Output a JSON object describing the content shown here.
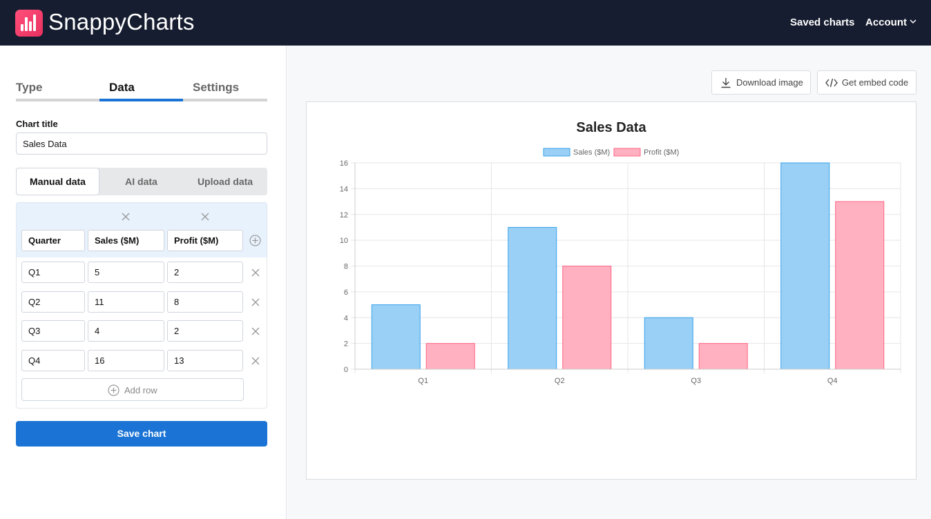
{
  "app": {
    "name": "SnappyCharts",
    "brand_color": "#ff4f7b",
    "header_bg": "#161d30"
  },
  "nav": {
    "saved_charts": "Saved charts",
    "account": "Account"
  },
  "editor": {
    "tabs": [
      {
        "label": "Type",
        "active": false
      },
      {
        "label": "Data",
        "active": true
      },
      {
        "label": "Settings",
        "active": false
      }
    ],
    "chart_title_label": "Chart title",
    "chart_title_value": "Sales Data",
    "data_modes": [
      {
        "label": "Manual data",
        "active": true
      },
      {
        "label": "AI data",
        "active": false
      },
      {
        "label": "Upload data",
        "active": false
      }
    ],
    "table": {
      "headers": [
        "Quarter",
        "Sales ($M)",
        "Profit ($M)"
      ],
      "rows": [
        [
          "Q1",
          "5",
          "2"
        ],
        [
          "Q2",
          "11",
          "8"
        ],
        [
          "Q3",
          "4",
          "2"
        ],
        [
          "Q4",
          "16",
          "13"
        ]
      ],
      "add_row_label": "Add row"
    },
    "save_label": "Save chart",
    "accent_color": "#1b74d5"
  },
  "toolbar": {
    "download_label": "Download image",
    "embed_label": "Get embed code"
  },
  "chart_data": {
    "type": "bar",
    "title": "Sales Data",
    "categories": [
      "Q1",
      "Q2",
      "Q3",
      "Q4"
    ],
    "series": [
      {
        "name": "Sales ($M)",
        "values": [
          5,
          11,
          4,
          16
        ],
        "fill": "#9ad0f5",
        "stroke": "#36a2eb"
      },
      {
        "name": "Profit ($M)",
        "values": [
          2,
          8,
          2,
          13
        ],
        "fill": "#ffb1c1",
        "stroke": "#ff6384"
      }
    ],
    "ylim": [
      0,
      16
    ],
    "yticks": [
      0,
      2,
      4,
      6,
      8,
      10,
      12,
      14,
      16
    ],
    "grid": true,
    "legend": "top"
  }
}
